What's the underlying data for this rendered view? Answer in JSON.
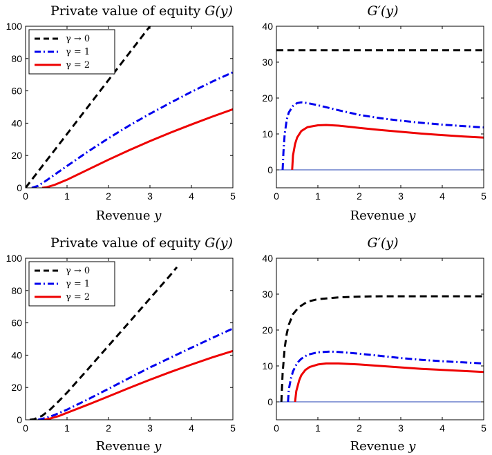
{
  "colors": {
    "black": "#000000",
    "blue": "#0000ee",
    "red": "#ee0000",
    "zero_line": "#1f3fb0"
  },
  "chart_data": [
    {
      "type": "line",
      "title_main": "Private value of equity ",
      "title_math": "G(y)",
      "xlabel_main": "Revenue ",
      "xlabel_math": "y",
      "ylabel": "",
      "xlim": [
        0,
        5
      ],
      "ylim": [
        0,
        100
      ],
      "xticks": [
        0,
        1,
        2,
        3,
        4,
        5
      ],
      "yticks": [
        0,
        20,
        40,
        60,
        80,
        100
      ],
      "legend": "top-left",
      "grid": false,
      "series": [
        {
          "name": "γ → 0",
          "color": "#000000",
          "style": "dashed",
          "x": [
            0,
            1,
            2,
            3
          ],
          "y": [
            0,
            33.3,
            66.7,
            100
          ]
        },
        {
          "name": "γ = 1",
          "color": "#0000ee",
          "style": "dashdot",
          "x": [
            0.15,
            0.3,
            0.5,
            0.75,
            1,
            1.5,
            2,
            2.5,
            3,
            3.5,
            4,
            4.5,
            5
          ],
          "y": [
            0,
            1.2,
            4.5,
            9,
            13.5,
            22.3,
            30.7,
            38.5,
            45.8,
            52.7,
            59.4,
            65.7,
            71.5
          ]
        },
        {
          "name": "γ = 2",
          "color": "#ee0000",
          "style": "solid",
          "x": [
            0.4,
            0.5,
            0.7,
            1,
            1.5,
            2,
            2.5,
            3,
            3.5,
            4,
            4.5,
            5
          ],
          "y": [
            0,
            0.3,
            1.8,
            5,
            11.2,
            17.4,
            23.3,
            28.9,
            34.2,
            39.2,
            44,
            48.6
          ]
        }
      ]
    },
    {
      "type": "line",
      "title_main": "",
      "title_math": "G′(y)",
      "xlabel_main": "Revenue ",
      "xlabel_math": "y",
      "ylabel": "",
      "xlim": [
        0,
        5
      ],
      "ylim": [
        -5,
        40
      ],
      "xticks": [
        0,
        1,
        2,
        3,
        4,
        5
      ],
      "yticks": [
        0,
        10,
        20,
        30,
        40
      ],
      "legend": "",
      "grid": false,
      "zero_line": true,
      "series": [
        {
          "color": "#000000",
          "style": "dashed",
          "x": [
            0,
            5
          ],
          "y": [
            33.3,
            33.3
          ]
        },
        {
          "color": "#0000ee",
          "style": "dashdot",
          "x": [
            0.15,
            0.17,
            0.2,
            0.25,
            0.3,
            0.4,
            0.5,
            0.6,
            0.75,
            1,
            1.5,
            2,
            2.5,
            3,
            3.5,
            4,
            4.5,
            5
          ],
          "y": [
            0,
            5,
            10,
            14,
            16,
            17.8,
            18.6,
            18.8,
            18.6,
            18,
            16.6,
            15.3,
            14.4,
            13.7,
            13.1,
            12.6,
            12.2,
            11.8
          ]
        },
        {
          "color": "#ee0000",
          "style": "solid",
          "x": [
            0.38,
            0.4,
            0.45,
            0.5,
            0.6,
            0.75,
            1,
            1.2,
            1.5,
            2,
            2.5,
            3,
            3.5,
            4,
            4.5,
            5
          ],
          "y": [
            0,
            4,
            7.2,
            9,
            10.8,
            11.9,
            12.4,
            12.5,
            12.3,
            11.7,
            11.1,
            10.6,
            10.1,
            9.7,
            9.3,
            9
          ]
        }
      ]
    },
    {
      "type": "line",
      "title_main": "Private value of equity ",
      "title_math": "G(y)",
      "xlabel_main": "Revenue ",
      "xlabel_math": "y",
      "ylabel": "",
      "xlim": [
        0,
        5
      ],
      "ylim": [
        0,
        100
      ],
      "xticks": [
        0,
        1,
        2,
        3,
        4,
        5
      ],
      "yticks": [
        0,
        20,
        40,
        60,
        80,
        100
      ],
      "legend": "top-left",
      "grid": false,
      "series": [
        {
          "name": "γ → 0",
          "color": "#000000",
          "style": "dashed",
          "x": [
            0.1,
            0.2,
            0.4,
            0.6,
            0.8,
            1,
            1.5,
            2,
            2.5,
            3,
            3.5,
            3.65
          ],
          "y": [
            0,
            0.3,
            2.5,
            6.5,
            11.5,
            16.8,
            31.2,
            45.8,
            60.4,
            75.1,
            89.8,
            94.5
          ]
        },
        {
          "name": "γ = 1",
          "color": "#0000ee",
          "style": "dashdot",
          "x": [
            0.3,
            0.5,
            0.7,
            1,
            1.5,
            2,
            2.5,
            3,
            3.5,
            4,
            4.5,
            5
          ],
          "y": [
            0,
            1.2,
            3,
            6.3,
            12.6,
            19.2,
            25.8,
            32.4,
            38.5,
            44.6,
            50.6,
            56.5
          ]
        },
        {
          "name": "γ = 2",
          "color": "#ee0000",
          "style": "solid",
          "x": [
            0.45,
            0.6,
            0.8,
            1,
            1.5,
            2,
            2.5,
            3,
            3.5,
            4,
            4.5,
            5
          ],
          "y": [
            0,
            0.8,
            2.3,
            4.3,
            9.3,
            14.5,
            19.7,
            24.8,
            29.6,
            34.2,
            38.6,
            42.6
          ]
        }
      ]
    },
    {
      "type": "line",
      "title_main": "",
      "title_math": "G′(y)",
      "xlabel_main": "Revenue ",
      "xlabel_math": "y",
      "ylabel": "",
      "xlim": [
        0,
        5
      ],
      "ylim": [
        -5,
        40
      ],
      "xticks": [
        0,
        1,
        2,
        3,
        4,
        5
      ],
      "yticks": [
        0,
        10,
        20,
        30,
        40
      ],
      "legend": "",
      "grid": false,
      "zero_line": true,
      "series": [
        {
          "color": "#000000",
          "style": "dashed",
          "x": [
            0.12,
            0.15,
            0.2,
            0.25,
            0.3,
            0.4,
            0.5,
            0.6,
            0.75,
            1,
            1.5,
            2,
            2.5,
            3,
            4,
            5
          ],
          "y": [
            0,
            8,
            15,
            19,
            21.5,
            24.4,
            25.8,
            26.8,
            27.9,
            28.6,
            29.1,
            29.3,
            29.4,
            29.4,
            29.4,
            29.4
          ]
        },
        {
          "color": "#0000ee",
          "style": "dashdot",
          "x": [
            0.28,
            0.3,
            0.35,
            0.4,
            0.5,
            0.6,
            0.75,
            1,
            1.3,
            1.5,
            2,
            2.5,
            3,
            3.5,
            4,
            4.5,
            5
          ],
          "y": [
            0,
            3.5,
            6.5,
            8.5,
            10.8,
            12,
            13.1,
            13.8,
            14,
            13.9,
            13.4,
            12.8,
            12.2,
            11.7,
            11.3,
            11,
            10.7
          ]
        },
        {
          "color": "#ee0000",
          "style": "solid",
          "x": [
            0.45,
            0.48,
            0.55,
            0.6,
            0.7,
            0.8,
            1,
            1.2,
            1.5,
            2,
            2.5,
            3,
            3.5,
            4,
            4.5,
            5
          ],
          "y": [
            0,
            3,
            6,
            7.4,
            8.9,
            9.7,
            10.4,
            10.7,
            10.7,
            10.4,
            10,
            9.6,
            9.2,
            8.9,
            8.6,
            8.3
          ]
        }
      ]
    }
  ]
}
